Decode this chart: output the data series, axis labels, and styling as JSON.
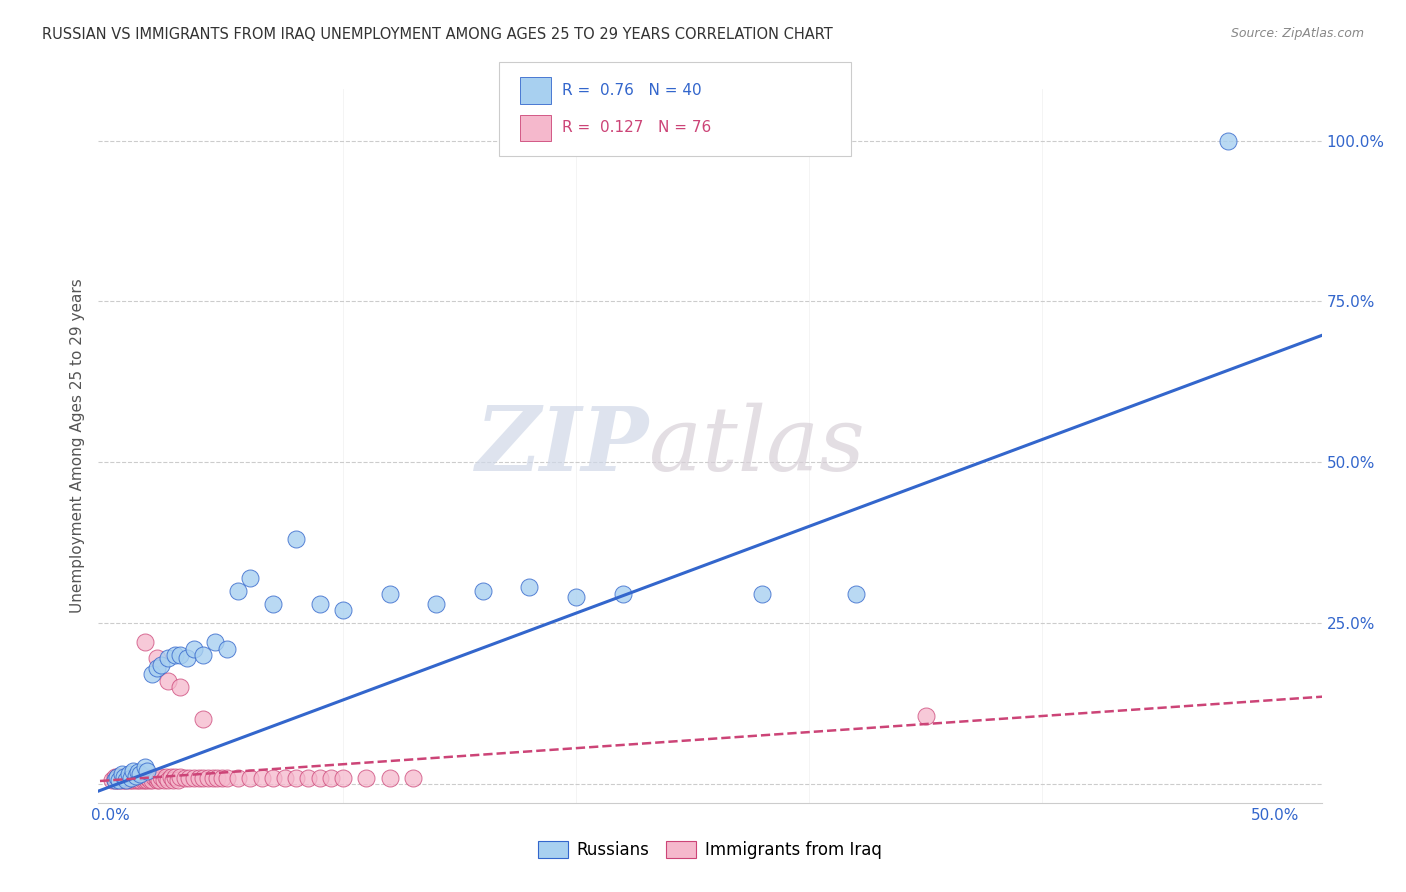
{
  "title": "RUSSIAN VS IMMIGRANTS FROM IRAQ UNEMPLOYMENT AMONG AGES 25 TO 29 YEARS CORRELATION CHART",
  "source": "Source: ZipAtlas.com",
  "ylabel_left": "Unemployment Among Ages 25 to 29 years",
  "x_tick_labels": [
    "0.0%",
    "",
    "",
    "",
    "",
    "50.0%"
  ],
  "x_tick_vals": [
    0.0,
    0.1,
    0.2,
    0.3,
    0.4,
    0.5
  ],
  "y_tick_labels_right": [
    "",
    "25.0%",
    "50.0%",
    "75.0%",
    "100.0%"
  ],
  "y_tick_vals": [
    0.0,
    0.25,
    0.5,
    0.75,
    1.0
  ],
  "xlim": [
    -0.005,
    0.52
  ],
  "ylim": [
    -0.03,
    1.08
  ],
  "russian_color": "#A8D0F0",
  "iraq_color": "#F5B8CC",
  "russian_R": 0.76,
  "russian_N": 40,
  "iraq_R": 0.127,
  "iraq_N": 76,
  "russian_line_color": "#3366CC",
  "iraq_line_color": "#CC4477",
  "watermark_zip": "ZIP",
  "watermark_atlas": "atlas",
  "legend_russian": "Russians",
  "legend_iraq": "Immigrants from Iraq",
  "russians_x": [
    0.002,
    0.003,
    0.004,
    0.005,
    0.006,
    0.007,
    0.008,
    0.009,
    0.01,
    0.011,
    0.012,
    0.013,
    0.015,
    0.016,
    0.018,
    0.02,
    0.022,
    0.025,
    0.028,
    0.03,
    0.033,
    0.036,
    0.04,
    0.045,
    0.05,
    0.055,
    0.06,
    0.07,
    0.08,
    0.09,
    0.1,
    0.12,
    0.14,
    0.16,
    0.18,
    0.2,
    0.22,
    0.28,
    0.32,
    0.48
  ],
  "russians_y": [
    0.005,
    0.01,
    0.005,
    0.015,
    0.01,
    0.005,
    0.015,
    0.008,
    0.02,
    0.012,
    0.018,
    0.015,
    0.025,
    0.02,
    0.17,
    0.18,
    0.185,
    0.195,
    0.2,
    0.2,
    0.195,
    0.21,
    0.2,
    0.22,
    0.21,
    0.3,
    0.32,
    0.28,
    0.38,
    0.28,
    0.27,
    0.295,
    0.28,
    0.3,
    0.305,
    0.29,
    0.295,
    0.295,
    0.295,
    1.0
  ],
  "iraq_x": [
    0.001,
    0.002,
    0.002,
    0.003,
    0.003,
    0.004,
    0.004,
    0.005,
    0.005,
    0.006,
    0.006,
    0.007,
    0.007,
    0.008,
    0.008,
    0.009,
    0.009,
    0.01,
    0.01,
    0.011,
    0.011,
    0.012,
    0.012,
    0.013,
    0.013,
    0.014,
    0.014,
    0.015,
    0.015,
    0.016,
    0.016,
    0.017,
    0.018,
    0.018,
    0.019,
    0.02,
    0.02,
    0.021,
    0.022,
    0.023,
    0.024,
    0.025,
    0.026,
    0.027,
    0.028,
    0.029,
    0.03,
    0.032,
    0.034,
    0.036,
    0.038,
    0.04,
    0.042,
    0.044,
    0.046,
    0.048,
    0.05,
    0.055,
    0.06,
    0.065,
    0.07,
    0.075,
    0.08,
    0.085,
    0.09,
    0.095,
    0.1,
    0.11,
    0.12,
    0.13,
    0.015,
    0.02,
    0.025,
    0.03,
    0.04,
    0.35
  ],
  "iraq_y": [
    0.005,
    0.005,
    0.01,
    0.005,
    0.01,
    0.005,
    0.01,
    0.005,
    0.01,
    0.005,
    0.01,
    0.005,
    0.01,
    0.005,
    0.01,
    0.005,
    0.01,
    0.005,
    0.01,
    0.005,
    0.01,
    0.005,
    0.01,
    0.005,
    0.01,
    0.005,
    0.01,
    0.005,
    0.01,
    0.005,
    0.01,
    0.005,
    0.01,
    0.005,
    0.01,
    0.005,
    0.01,
    0.005,
    0.01,
    0.005,
    0.01,
    0.005,
    0.01,
    0.005,
    0.01,
    0.005,
    0.01,
    0.008,
    0.008,
    0.008,
    0.008,
    0.008,
    0.008,
    0.008,
    0.008,
    0.008,
    0.008,
    0.008,
    0.008,
    0.008,
    0.008,
    0.008,
    0.008,
    0.008,
    0.008,
    0.008,
    0.008,
    0.008,
    0.008,
    0.008,
    0.22,
    0.195,
    0.16,
    0.15,
    0.1,
    0.105
  ]
}
